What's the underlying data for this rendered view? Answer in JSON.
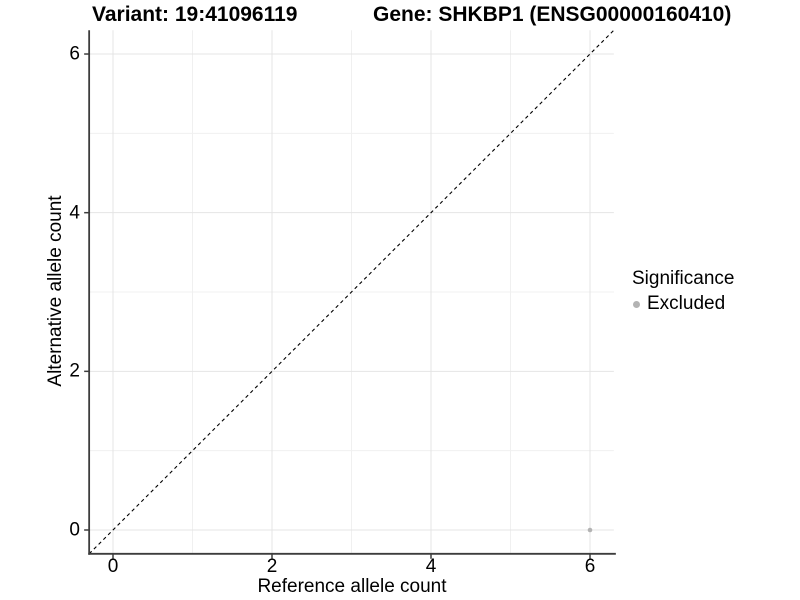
{
  "chart_data": {
    "type": "scatter",
    "title_left": "Variant: 19:41096119",
    "title_right": "Gene: SHKBP1 (ENSG00000160410)",
    "xlabel": "Reference allele count",
    "ylabel": "Alternative allele count",
    "xlim": [
      -0.3,
      6.3
    ],
    "ylim": [
      -0.3,
      6.3
    ],
    "x_ticks": [
      0,
      2,
      4,
      6
    ],
    "y_ticks": [
      0,
      2,
      4,
      6
    ],
    "x_minor_gridlines": [
      1,
      3,
      5
    ],
    "y_minor_gridlines": [
      1,
      3,
      5
    ],
    "grid": true,
    "series": [
      {
        "name": "Excluded",
        "color": "#b3b3b3",
        "points": [
          [
            6,
            0
          ]
        ]
      }
    ],
    "identity_line": {
      "equation": "y = x",
      "style": "dashed",
      "color": "#000000"
    },
    "legend": {
      "position": "right",
      "title": "Significance",
      "entries": [
        {
          "label": "Excluded",
          "color": "#b3b3b3"
        }
      ]
    },
    "colors": {
      "background": "#ffffff",
      "text": "#000000",
      "axis": "#3d3d3d",
      "grid_major": "#e4e4e4",
      "grid_minor": "#f0f0f0"
    }
  }
}
